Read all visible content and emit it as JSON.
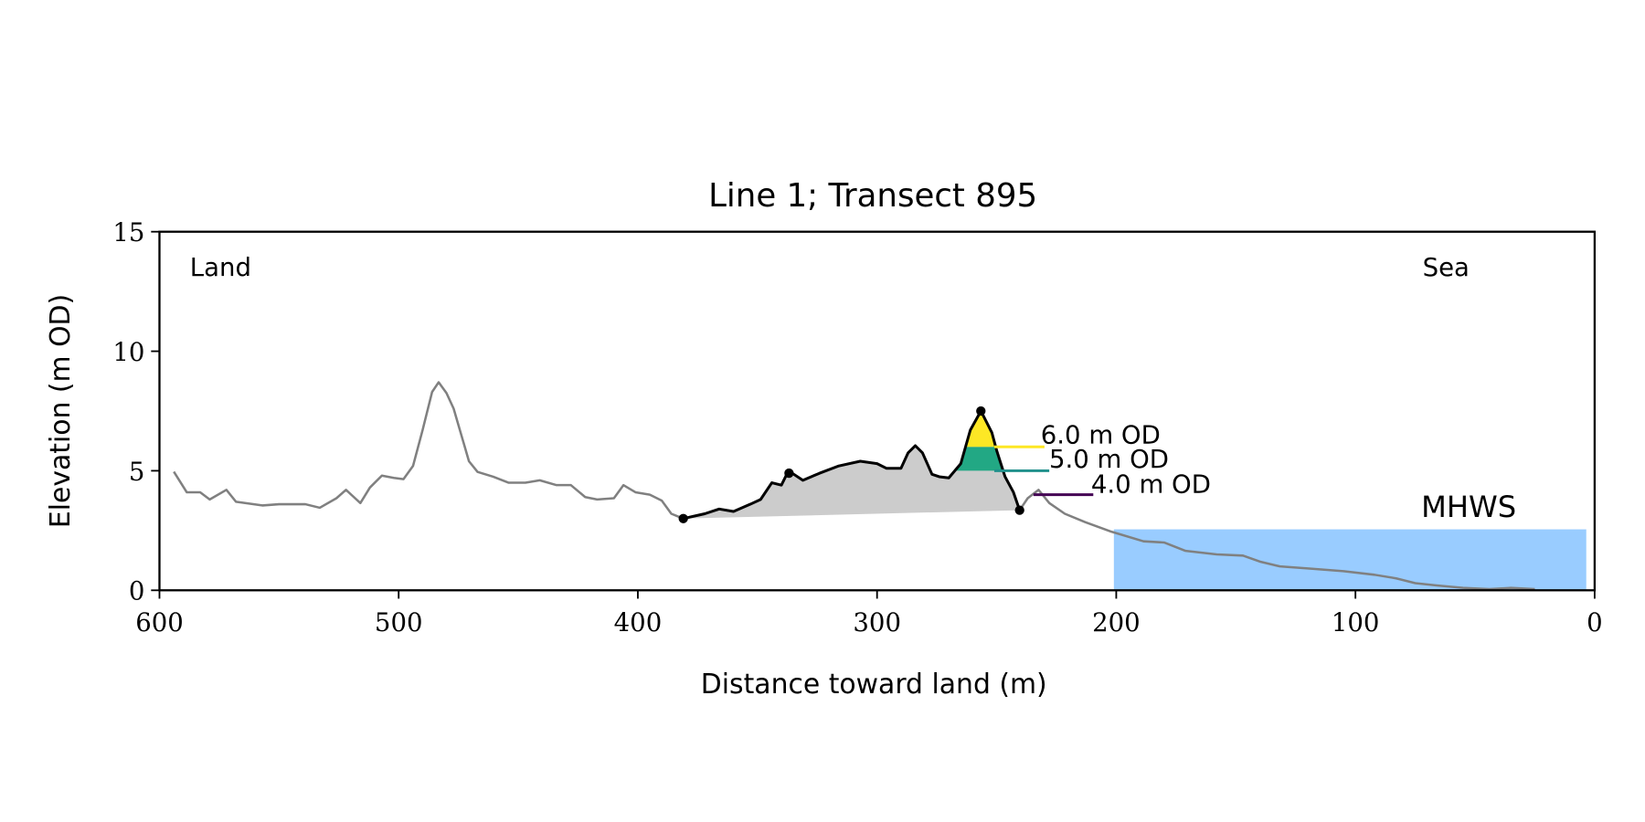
{
  "chart_data": {
    "type": "line",
    "title": "Line 1; Transect 895",
    "xlabel": "Distance toward land (m)",
    "ylabel": "Elevation (m OD)",
    "xlim": [
      600,
      0
    ],
    "ylim": [
      0,
      15
    ],
    "xticks": [
      "600",
      "500",
      "400",
      "300",
      "200",
      "100",
      "0"
    ],
    "xtick_values": [
      600,
      500,
      400,
      300,
      200,
      100,
      0
    ],
    "yticks": [
      "0",
      "5",
      "10",
      "15"
    ],
    "ytick_values": [
      0,
      5,
      10,
      15
    ],
    "annotations": {
      "land": "Land",
      "sea": "Sea",
      "mhws": "MHWS"
    },
    "mhws": {
      "elevation": 2.55,
      "from": 201,
      "to": 3.5,
      "fill": "#99ccff",
      "text_color": "#6a9fd4"
    },
    "profile_gray": [
      [
        594,
        4.96
      ],
      [
        588.6,
        4.1
      ],
      [
        583,
        4.1
      ],
      [
        579,
        3.8
      ],
      [
        572,
        4.2
      ],
      [
        568,
        3.7
      ],
      [
        557,
        3.55
      ],
      [
        550,
        3.6
      ],
      [
        539,
        3.6
      ],
      [
        533,
        3.45
      ],
      [
        526,
        3.85
      ],
      [
        522,
        4.2
      ],
      [
        516,
        3.65
      ],
      [
        512,
        4.3
      ],
      [
        507,
        4.8
      ],
      [
        502,
        4.7
      ],
      [
        498,
        4.65
      ],
      [
        494,
        5.2
      ],
      [
        490,
        6.7
      ],
      [
        486,
        8.3
      ],
      [
        483.3,
        8.7
      ],
      [
        480,
        8.25
      ],
      [
        477,
        7.6
      ],
      [
        470.6,
        5.4
      ],
      [
        467,
        4.95
      ],
      [
        460.5,
        4.75
      ],
      [
        454,
        4.5
      ],
      [
        447,
        4.5
      ],
      [
        441,
        4.6
      ],
      [
        434,
        4.4
      ],
      [
        428,
        4.4
      ],
      [
        422,
        3.9
      ],
      [
        417,
        3.8
      ],
      [
        410,
        3.85
      ],
      [
        406,
        4.4
      ],
      [
        401,
        4.1
      ],
      [
        395,
        4.0
      ],
      [
        390,
        3.75
      ],
      [
        386,
        3.2
      ],
      [
        381,
        3.0
      ],
      [
        372,
        3.2
      ],
      [
        366,
        3.4
      ],
      [
        360,
        3.3
      ],
      [
        353,
        3.6
      ],
      [
        348.7,
        3.8
      ],
      [
        344,
        4.5
      ],
      [
        340,
        4.4
      ],
      [
        337,
        5.0
      ],
      [
        331,
        4.6
      ],
      [
        324,
        4.9
      ],
      [
        316,
        5.2
      ],
      [
        307,
        5.4
      ],
      [
        300,
        5.3
      ],
      [
        296,
        5.1
      ],
      [
        290,
        5.1
      ],
      [
        287,
        5.75
      ],
      [
        284,
        6.05
      ],
      [
        281,
        5.75
      ],
      [
        277,
        4.85
      ],
      [
        274,
        4.75
      ],
      [
        270,
        4.7
      ],
      [
        265,
        5.3
      ],
      [
        261,
        6.7
      ],
      [
        256.6,
        7.5
      ],
      [
        252,
        6.6
      ],
      [
        250,
        5.85
      ],
      [
        246.5,
        4.75
      ],
      [
        243,
        4.1
      ],
      [
        240.4,
        3.35
      ],
      [
        237,
        3.85
      ],
      [
        232.5,
        4.2
      ],
      [
        228,
        3.65
      ],
      [
        221.5,
        3.2
      ],
      [
        213,
        2.85
      ],
      [
        202,
        2.45
      ],
      [
        188.6,
        2.05
      ],
      [
        180,
        2.0
      ],
      [
        171,
        1.65
      ],
      [
        158,
        1.5
      ],
      [
        147,
        1.45
      ],
      [
        140,
        1.2
      ],
      [
        131.6,
        1.0
      ],
      [
        118,
        0.9
      ],
      [
        105,
        0.8
      ],
      [
        92,
        0.65
      ],
      [
        83,
        0.5
      ],
      [
        75,
        0.3
      ],
      [
        66,
        0.2
      ],
      [
        55,
        0.1
      ],
      [
        44,
        0.05
      ],
      [
        35,
        0.1
      ],
      [
        25,
        0.05
      ]
    ],
    "dune_segment": {
      "from": 381,
      "to": 240.4,
      "crest": [
        256.6,
        7.5
      ],
      "mid_marker": [
        336.8,
        4.9
      ]
    },
    "levels": [
      {
        "label": "6.0 m OD",
        "value": 6.0,
        "color": "#fde725",
        "line_from": 251,
        "line_to": 230
      },
      {
        "label": "5.0 m OD",
        "value": 5.0,
        "color": "#21918c",
        "fill": "#22a884",
        "line_from": 251,
        "line_to": 228
      },
      {
        "label": "4.0 m OD",
        "value": 4.0,
        "color": "#440154",
        "line_from": 234.6,
        "line_to": 209.6
      }
    ]
  }
}
